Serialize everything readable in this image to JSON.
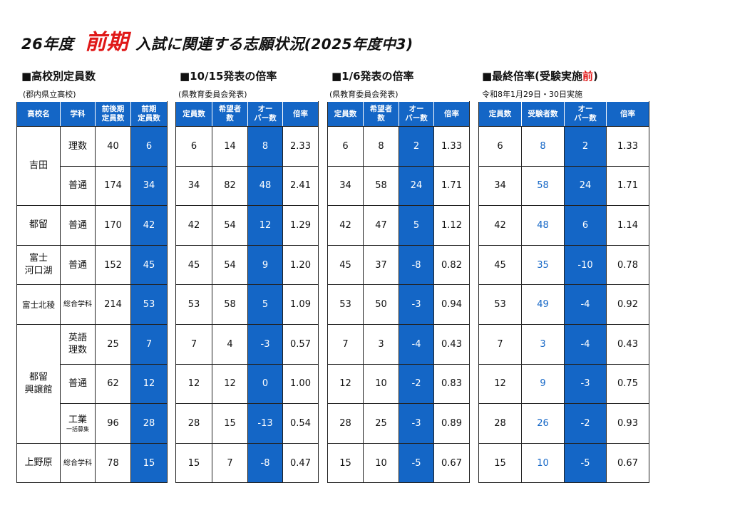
{
  "title": {
    "prefix": "26年度",
    "emphasis": "前期",
    "suffix": "入試に関連する志願状況",
    "paren": "(2025年度中3)"
  },
  "sections": {
    "s1": {
      "heading": "■高校別定員数",
      "note": "(郡内県立高校)"
    },
    "s2": {
      "heading": "■10/15発表の倍率",
      "note": "(県教育委員会発表)"
    },
    "s3": {
      "heading": "■1/6発表の倍率",
      "note": "(県教育委員会発表)"
    },
    "s4": {
      "heading_main": "■最終倍率(受験実施",
      "heading_red": "前",
      "heading_end": ")",
      "note": "令和8年1月29日・30日実施"
    }
  },
  "headers": {
    "t1": [
      "高校名",
      "学科",
      "前後期\n定員数",
      "前期\n定員数"
    ],
    "t2": [
      "定員数",
      "希望者\n数",
      "オー\nバー数",
      "倍率"
    ],
    "t3": [
      "定員数",
      "希望者\n数",
      "オー\nバー数",
      "倍率"
    ],
    "t4": [
      "定員数",
      "受験者数",
      "オー\nバー数",
      "倍率"
    ]
  },
  "schools": [
    {
      "name": "吉田",
      "rowspan": 2,
      "small": false
    },
    {
      "name": "都留",
      "rowspan": 1,
      "small": false
    },
    {
      "name": "富士\n河口湖",
      "rowspan": 1,
      "small": false
    },
    {
      "name": "富士北稜",
      "rowspan": 1,
      "small": true
    },
    {
      "name": "都留\n興譲館",
      "rowspan": 3,
      "small": false
    },
    {
      "name": "上野原",
      "rowspan": 1,
      "small": false
    }
  ],
  "rows": [
    {
      "subject": "理数",
      "subject_sub": "",
      "subject_small": false,
      "total": "40",
      "early": "6",
      "oct": [
        "6",
        "14",
        "8",
        "2.33"
      ],
      "jan": [
        "6",
        "8",
        "2",
        "1.33"
      ],
      "final": [
        "6",
        "8",
        "2",
        "1.33"
      ]
    },
    {
      "subject": "普通",
      "subject_sub": "",
      "subject_small": false,
      "total": "174",
      "early": "34",
      "oct": [
        "34",
        "82",
        "48",
        "2.41"
      ],
      "jan": [
        "34",
        "58",
        "24",
        "1.71"
      ],
      "final": [
        "34",
        "58",
        "24",
        "1.71"
      ]
    },
    {
      "subject": "普通",
      "subject_sub": "",
      "subject_small": false,
      "total": "170",
      "early": "42",
      "oct": [
        "42",
        "54",
        "12",
        "1.29"
      ],
      "jan": [
        "42",
        "47",
        "5",
        "1.12"
      ],
      "final": [
        "42",
        "48",
        "6",
        "1.14"
      ]
    },
    {
      "subject": "普通",
      "subject_sub": "",
      "subject_small": false,
      "total": "152",
      "early": "45",
      "oct": [
        "45",
        "54",
        "9",
        "1.20"
      ],
      "jan": [
        "45",
        "37",
        "-8",
        "0.82"
      ],
      "final": [
        "45",
        "35",
        "-10",
        "0.78"
      ]
    },
    {
      "subject": "総合学科",
      "subject_sub": "",
      "subject_small": true,
      "total": "214",
      "early": "53",
      "oct": [
        "53",
        "58",
        "5",
        "1.09"
      ],
      "jan": [
        "53",
        "50",
        "-3",
        "0.94"
      ],
      "final": [
        "53",
        "49",
        "-4",
        "0.92"
      ]
    },
    {
      "subject": "英語\n理数",
      "subject_sub": "",
      "subject_small": false,
      "total": "25",
      "early": "7",
      "oct": [
        "7",
        "4",
        "-3",
        "0.57"
      ],
      "jan": [
        "7",
        "3",
        "-4",
        "0.43"
      ],
      "final": [
        "7",
        "3",
        "-4",
        "0.43"
      ]
    },
    {
      "subject": "普通",
      "subject_sub": "",
      "subject_small": false,
      "total": "62",
      "early": "12",
      "oct": [
        "12",
        "12",
        "0",
        "1.00"
      ],
      "jan": [
        "12",
        "10",
        "-2",
        "0.83"
      ],
      "final": [
        "12",
        "9",
        "-3",
        "0.75"
      ]
    },
    {
      "subject": "工業",
      "subject_sub": "一括募集",
      "subject_small": false,
      "total": "96",
      "early": "28",
      "oct": [
        "28",
        "15",
        "-13",
        "0.54"
      ],
      "jan": [
        "28",
        "25",
        "-3",
        "0.89"
      ],
      "final": [
        "28",
        "26",
        "-2",
        "0.93"
      ]
    },
    {
      "subject": "総合学科",
      "subject_sub": "",
      "subject_small": true,
      "total": "78",
      "early": "15",
      "oct": [
        "15",
        "7",
        "-8",
        "0.47"
      ],
      "jan": [
        "15",
        "10",
        "-5",
        "0.67"
      ],
      "final": [
        "15",
        "10",
        "-5",
        "0.67"
      ]
    }
  ]
}
